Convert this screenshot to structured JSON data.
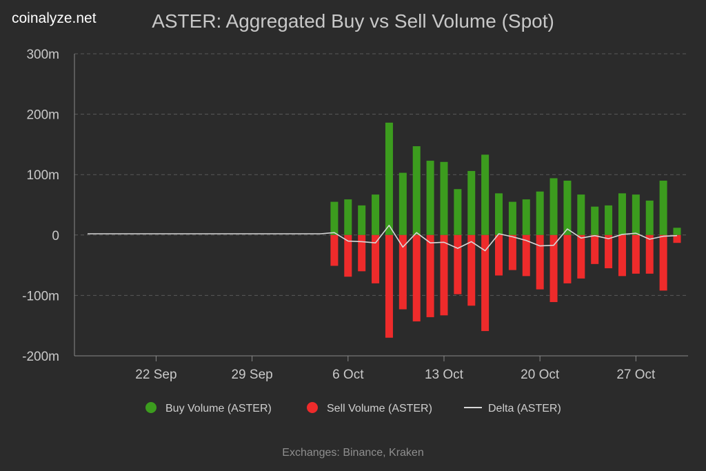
{
  "brand": "coinalyze.net",
  "chart_data": {
    "type": "bar",
    "title": "ASTER: Aggregated Buy vs Sell Volume (Spot)",
    "subtitle": "Exchanges: Binance, Kraken",
    "ylim": [
      -200,
      300
    ],
    "yticks": [
      300,
      200,
      100,
      0,
      -100,
      -200
    ],
    "ytick_labels": [
      "300m",
      "200m",
      "100m",
      "0",
      "-100m",
      "-200m"
    ],
    "x_range": [
      "2025-09-17",
      "2025-10-30"
    ],
    "xticks": [
      "2025-09-22",
      "2025-09-29",
      "2025-10-06",
      "2025-10-13",
      "2025-10-20",
      "2025-10-27"
    ],
    "xtick_labels": [
      "22 Sep",
      "29 Sep",
      "6 Oct",
      "13 Oct",
      "20 Oct",
      "27 Oct"
    ],
    "grid": true,
    "legend": "bottom",
    "colors": {
      "buy": "#3c9c1e",
      "sell": "#ee2b2b",
      "delta": "#d8d8d8",
      "grid": "#5a5a5a",
      "axis": "#8a8a8a"
    },
    "series": [
      {
        "name": "Buy Volume (ASTER)",
        "type": "bar",
        "x": [
          "2025-10-05",
          "2025-10-06",
          "2025-10-07",
          "2025-10-08",
          "2025-10-09",
          "2025-10-10",
          "2025-10-11",
          "2025-10-12",
          "2025-10-13",
          "2025-10-14",
          "2025-10-15",
          "2025-10-16",
          "2025-10-17",
          "2025-10-18",
          "2025-10-19",
          "2025-10-20",
          "2025-10-21",
          "2025-10-22",
          "2025-10-23",
          "2025-10-24",
          "2025-10-25",
          "2025-10-26",
          "2025-10-27",
          "2025-10-28",
          "2025-10-29",
          "2025-10-30"
        ],
        "values": [
          55,
          59,
          49,
          67,
          186,
          103,
          147,
          123,
          121,
          76,
          106,
          133,
          69,
          55,
          59,
          72,
          94,
          90,
          67,
          47,
          49,
          69,
          67,
          57,
          90,
          12
        ]
      },
      {
        "name": "Sell Volume (ASTER)",
        "type": "bar",
        "x": [
          "2025-10-05",
          "2025-10-06",
          "2025-10-07",
          "2025-10-08",
          "2025-10-09",
          "2025-10-10",
          "2025-10-11",
          "2025-10-12",
          "2025-10-13",
          "2025-10-14",
          "2025-10-15",
          "2025-10-16",
          "2025-10-17",
          "2025-10-18",
          "2025-10-19",
          "2025-10-20",
          "2025-10-21",
          "2025-10-22",
          "2025-10-23",
          "2025-10-24",
          "2025-10-25",
          "2025-10-26",
          "2025-10-27",
          "2025-10-28",
          "2025-10-29",
          "2025-10-30"
        ],
        "values": [
          -51,
          -69,
          -60,
          -80,
          -170,
          -123,
          -143,
          -136,
          -133,
          -98,
          -117,
          -159,
          -67,
          -58,
          -68,
          -90,
          -111,
          -80,
          -72,
          -48,
          -55,
          -68,
          -64,
          -64,
          -92,
          -13
        ]
      },
      {
        "name": "Delta (ASTER)",
        "type": "line",
        "x": [
          "2025-09-17",
          "2025-09-18",
          "2025-09-19",
          "2025-09-20",
          "2025-09-21",
          "2025-09-22",
          "2025-09-23",
          "2025-09-24",
          "2025-09-25",
          "2025-09-26",
          "2025-09-27",
          "2025-09-28",
          "2025-09-29",
          "2025-09-30",
          "2025-10-01",
          "2025-10-02",
          "2025-10-03",
          "2025-10-04",
          "2025-10-05",
          "2025-10-06",
          "2025-10-07",
          "2025-10-08",
          "2025-10-09",
          "2025-10-10",
          "2025-10-11",
          "2025-10-12",
          "2025-10-13",
          "2025-10-14",
          "2025-10-15",
          "2025-10-16",
          "2025-10-17",
          "2025-10-18",
          "2025-10-19",
          "2025-10-20",
          "2025-10-21",
          "2025-10-22",
          "2025-10-23",
          "2025-10-24",
          "2025-10-25",
          "2025-10-26",
          "2025-10-27",
          "2025-10-28",
          "2025-10-29",
          "2025-10-30"
        ],
        "values": [
          2,
          2,
          2,
          2,
          2,
          2,
          2,
          2,
          2,
          2,
          2,
          2,
          2,
          2,
          2,
          2,
          2,
          2,
          4,
          -10,
          -11,
          -13,
          16,
          -20,
          4,
          -13,
          -12,
          -22,
          -11,
          -26,
          2,
          -3,
          -9,
          -18,
          -17,
          10,
          -5,
          -1,
          -6,
          1,
          3,
          -7,
          -2,
          -1
        ]
      }
    ]
  }
}
